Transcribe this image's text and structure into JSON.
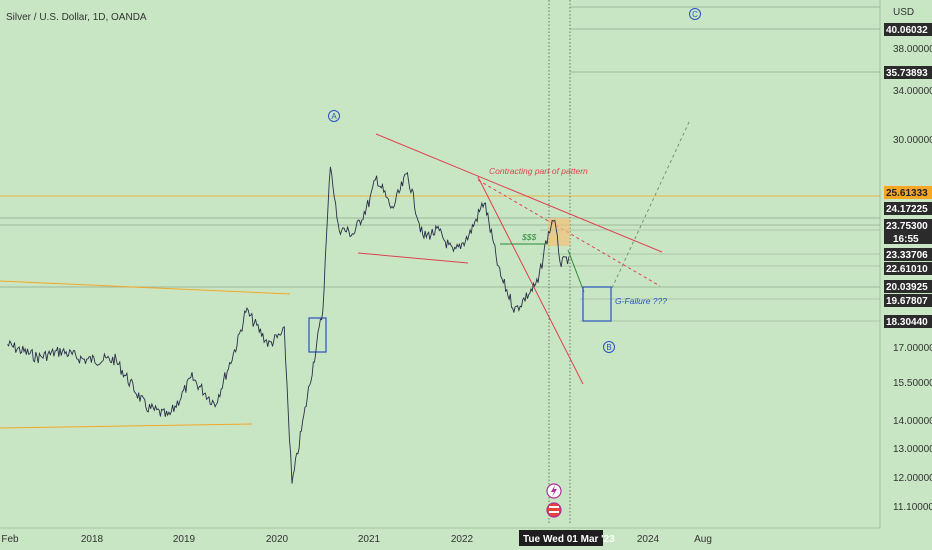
{
  "chart_data": {
    "type": "line",
    "title": "Silver / U.S. Dollar, 1D, OANDA",
    "currency": "USD",
    "y_axis": {
      "scale": "log",
      "ticks": [
        "38.00000",
        "34.00000",
        "30.00000",
        "17.00000",
        "15.50000",
        "14.00000",
        "13.00000",
        "12.00000",
        "11.10000"
      ]
    },
    "x_axis": {
      "ticks": [
        "Feb",
        "2018",
        "2019",
        "2020",
        "2021",
        "2022",
        "2024",
        "Aug"
      ]
    },
    "price_tags": [
      {
        "value": "40.06032",
        "style": "dark"
      },
      {
        "value": "35.73893",
        "style": "dark"
      },
      {
        "value": "25.61333",
        "style": "orange"
      },
      {
        "value": "24.17225",
        "style": "dark"
      },
      {
        "value": "23.75300",
        "style": "dark"
      },
      {
        "value": "16:55",
        "style": "dark"
      },
      {
        "value": "23.33706",
        "style": "dark"
      },
      {
        "value": "22.61010",
        "style": "dark"
      },
      {
        "value": "20.03925",
        "style": "dark"
      },
      {
        "value": "19.67807",
        "style": "dark"
      },
      {
        "value": "18.30440",
        "style": "dark"
      }
    ],
    "crosshair_time": {
      "day": "Tue",
      "date": "Wed 01 Mar '23"
    },
    "annotations": {
      "contracting": "Contracting part of pattern",
      "dollars": "$$$",
      "g_failure": "G-Failure ???",
      "wave_a": "A",
      "wave_b": "B",
      "wave_c": "C"
    },
    "series": [
      {
        "x": [
          "2017-02",
          "2017-06",
          "2017-09",
          "2017-12",
          "2018-04",
          "2018-08",
          "2018-11",
          "2019-02",
          "2019-05",
          "2019-08",
          "2019-09",
          "2019-12",
          "2020-02",
          "2020-03",
          "2020-05",
          "2020-07",
          "2020-08",
          "2020-09",
          "2020-11",
          "2021-01",
          "2021-02",
          "2021-04",
          "2021-06",
          "2021-08",
          "2021-10",
          "2021-12",
          "2022-02",
          "2022-04",
          "2022-06",
          "2022-08",
          "2022-09",
          "2022-11",
          "2022-12",
          "2023-01",
          "2023-02",
          "2023-03"
        ],
        "y": [
          17.3,
          16.7,
          17.0,
          16.6,
          16.6,
          14.6,
          14.2,
          15.8,
          14.7,
          17.5,
          19.0,
          17.3,
          17.9,
          11.8,
          15.0,
          19.0,
          28.5,
          23.8,
          23.4,
          25.5,
          27.3,
          25.0,
          27.6,
          23.2,
          23.6,
          22.2,
          23.3,
          25.6,
          21.0,
          19.0,
          19.5,
          20.5,
          22.8,
          24.5,
          21.5,
          22.0
        ]
      }
    ],
    "line_colors": {
      "price": "#2a2f4a",
      "trend": "#e0414f",
      "orange": "#f5a623",
      "green": "#2e8b3a",
      "blue": "#2a52be",
      "grid": "#9fb59b"
    }
  }
}
